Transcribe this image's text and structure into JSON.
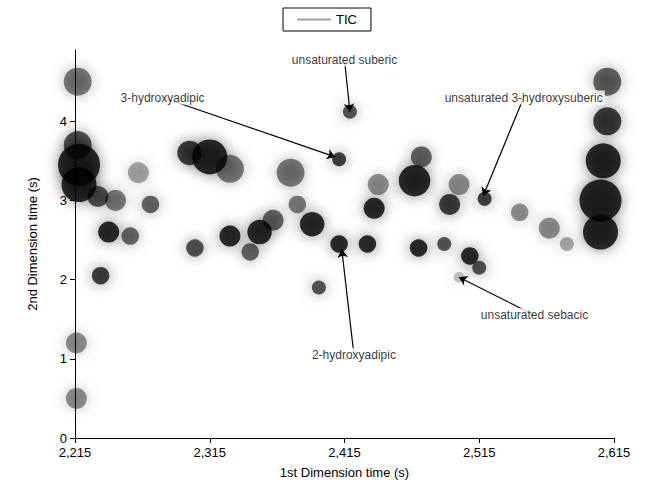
{
  "chart_data": {
    "type": "contour",
    "x_label": "1st Dimension time (s)",
    "y_label": "2nd Dimension time (s)",
    "xlim": [
      2215,
      2615
    ],
    "xticks": [
      2215,
      2315,
      2415,
      2515,
      2615
    ],
    "ylim": [
      0,
      4.9
    ],
    "yticks": [
      0,
      1,
      2,
      3,
      4
    ],
    "grid": false,
    "legend": "top",
    "series": [
      {
        "name": "TIC",
        "color": "#000000",
        "x": [
          2218,
          2218,
          2217,
          2217,
          2216,
          2216,
          2232,
          2240,
          2234,
          2245,
          2256,
          2271,
          2262,
          2304,
          2315,
          2300,
          2330,
          2330,
          2345,
          2352,
          2362,
          2375,
          2391,
          2396,
          2380,
          2411,
          2411,
          2419,
          2432,
          2437,
          2440,
          2467,
          2472,
          2470,
          2489,
          2493,
          2500,
          2508,
          2515,
          2519,
          2500,
          2545,
          2567,
          2580,
          2605,
          2605,
          2607,
          2610,
          2610
        ],
        "y": [
          3.45,
          3.2,
          3.7,
          4.5,
          1.2,
          0.5,
          3.05,
          2.6,
          2.05,
          3.0,
          2.55,
          2.95,
          3.35,
          2.4,
          3.55,
          3.6,
          3.4,
          2.55,
          2.35,
          2.6,
          2.75,
          3.35,
          2.7,
          1.9,
          2.95,
          2.45,
          3.52,
          4.12,
          2.45,
          2.9,
          3.2,
          3.25,
          3.55,
          2.4,
          2.45,
          2.95,
          3.2,
          2.3,
          2.15,
          3.02,
          2.03,
          2.85,
          2.65,
          2.45,
          3.0,
          2.6,
          3.5,
          4.5,
          4.0
        ],
        "intensity": [
          1,
          1,
          0.8,
          0.6,
          0.5,
          0.5,
          0.8,
          1,
          0.9,
          0.6,
          0.7,
          0.7,
          0.4,
          0.8,
          1,
          0.9,
          0.6,
          1,
          0.7,
          1,
          0.7,
          0.6,
          1,
          0.8,
          0.6,
          1,
          0.9,
          0.8,
          1,
          1,
          0.5,
          1,
          0.7,
          1,
          0.8,
          0.9,
          0.5,
          1,
          0.8,
          0.9,
          0.3,
          0.5,
          0.5,
          0.4,
          1,
          1,
          1,
          0.7,
          0.9
        ],
        "size": [
          6,
          5,
          4,
          4,
          3,
          3,
          3,
          3,
          2.5,
          3,
          2.5,
          2.5,
          3,
          2.5,
          5,
          3.5,
          4,
          3,
          2.5,
          3.5,
          3,
          4,
          3.5,
          2,
          2.5,
          2.5,
          2,
          2,
          2.5,
          3,
          3,
          4.5,
          3,
          2.5,
          2,
          3,
          3,
          2.5,
          2,
          2,
          1.5,
          2.5,
          3,
          2,
          6,
          5,
          5,
          4,
          4
        ]
      }
    ],
    "annotations": [
      {
        "text": "unsaturated suberic",
        "x": 2419,
        "y": 4.12,
        "text_x": 2415,
        "text_y": 4.78
      },
      {
        "text": "3-hydroxyadipic",
        "x": 2408,
        "y": 3.55,
        "text_x": 2280,
        "text_y": 4.3
      },
      {
        "text": "unsaturated 3-hydroxysuberic",
        "x": 2518,
        "y": 3.06,
        "text_x": 2548,
        "text_y": 4.3
      },
      {
        "text": "2-hydroxyadipic",
        "x": 2413,
        "y": 2.38,
        "text_x": 2422,
        "text_y": 1.05
      },
      {
        "text": "unsaturated sebacic",
        "x": 2500,
        "y": 2.03,
        "text_x": 2556,
        "text_y": 1.55
      }
    ]
  }
}
